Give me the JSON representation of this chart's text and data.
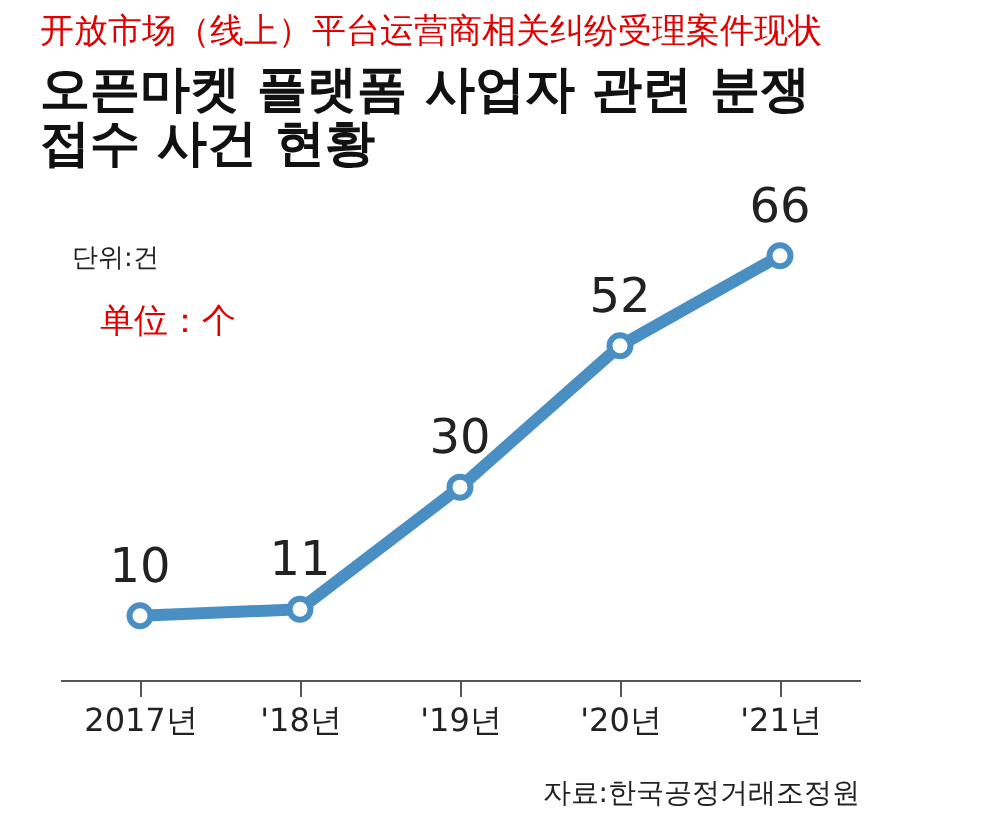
{
  "chart_data": {
    "type": "line",
    "title": "开放市场（线上）平台运营商相关纠纷受理案件现状",
    "subtitle": "오픈마켓 플랫폼 사업자 관련 분쟁 접수 사건 현황",
    "categories": [
      "2017년",
      "'18년",
      "'19년",
      "'20년",
      "'21년"
    ],
    "series": [
      {
        "color": "#4a8fc4",
        "values": [
          10,
          11,
          30,
          52,
          66
        ]
      }
    ],
    "tick_labels": "x",
    "grid": false,
    "marker": "circle",
    "line_style": "solid",
    "data_labels": true,
    "annotations": [
      "단위:건",
      "单位：个",
      "자료:한국공정거래조정원"
    ]
  }
}
